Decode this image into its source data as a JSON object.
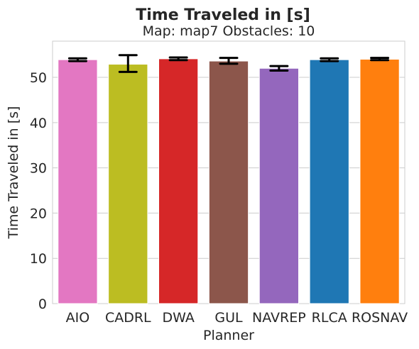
{
  "chart_data": {
    "type": "bar",
    "title": "Time Traveled in [s]",
    "subtitle": "Map: map7 Obstacles: 10",
    "xlabel": "Planner",
    "ylabel": "Time Traveled in [s]",
    "ylim": [
      0,
      58
    ],
    "yticks": [
      "0",
      "10",
      "20",
      "30",
      "40",
      "50"
    ],
    "grid": true,
    "categories": [
      "AIO",
      "CADRL",
      "DWA",
      "GUL",
      "NAVREP",
      "RLCA",
      "ROSNAV"
    ],
    "values": [
      53.9,
      52.9,
      54.1,
      53.6,
      52.0,
      53.9,
      54.0
    ],
    "error_low": [
      53.6,
      51.2,
      53.8,
      53.0,
      51.5,
      53.6,
      53.8
    ],
    "error_high": [
      54.2,
      54.9,
      54.4,
      54.3,
      52.5,
      54.2,
      54.3
    ],
    "colors": [
      "#e377c2",
      "#bcbd22",
      "#d62728",
      "#8c564b",
      "#9467bd",
      "#1f77b4",
      "#ff7f0e"
    ]
  }
}
